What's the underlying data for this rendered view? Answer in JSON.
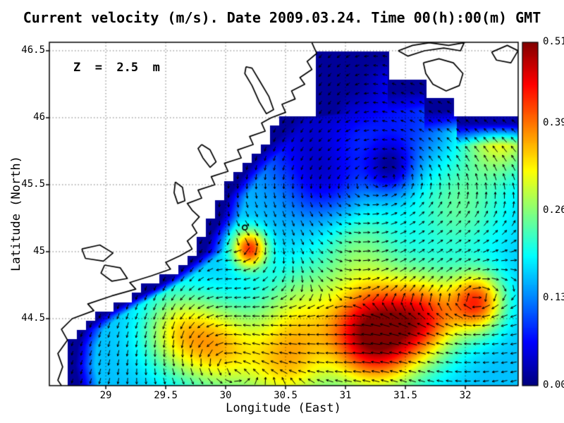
{
  "figure": {
    "title": "Current velocity (m/s). Date 2009.03.24. Time 00(h):00(m) GMT",
    "annotation": "Z  =  2.5  m",
    "background": "#ffffff"
  },
  "axes": {
    "x": {
      "label": "Longitude (East)",
      "range": [
        28.529,
        32.441
      ],
      "ticks": [
        29,
        29.5,
        30,
        30.5,
        31,
        31.5,
        32
      ],
      "tick_labels": [
        "29",
        "29.5",
        "30",
        "30.5",
        "31",
        "31.5",
        "32"
      ]
    },
    "y": {
      "label": "Latitude (North)",
      "range": [
        44.0,
        46.563
      ],
      "ticks": [
        46.5,
        46,
        45.5,
        45,
        44.5
      ],
      "tick_labels": [
        "46.5",
        "46",
        "45.5",
        "45",
        "44.5"
      ]
    },
    "grid": "dotted"
  },
  "colorbar": {
    "min": 0.0,
    "max": 0.51,
    "colormap": "jet",
    "ticks": [
      0.51,
      0.39,
      0.26,
      0.13,
      0.0
    ],
    "tick_labels": [
      "0.51",
      "0.39",
      "0.26",
      "0.13",
      "0.00"
    ]
  },
  "chart_data": {
    "type": "heatmap",
    "subtype": "current-velocity-vector-field",
    "units": "m/s",
    "depth_m": 2.5,
    "date": "2009.03.24",
    "time": "00(h):00(m) GMT",
    "value_range": [
      0.0,
      0.51
    ],
    "lon_range": [
      28.529,
      32.441
    ],
    "lat_range": [
      44.0,
      46.563
    ],
    "vector_grid_cells": [
      51,
      37
    ],
    "field": {
      "base": 0.16,
      "bumps": [
        [
          31.25,
          44.38,
          0.38,
          0.36
        ],
        [
          31.68,
          44.52,
          0.3,
          0.2
        ],
        [
          30.2,
          45.02,
          0.14,
          0.26
        ],
        [
          29.95,
          44.28,
          0.32,
          0.16
        ],
        [
          32.1,
          44.62,
          0.22,
          0.24
        ],
        [
          30.62,
          44.55,
          0.35,
          0.1
        ],
        [
          31.95,
          45.35,
          0.4,
          0.08
        ],
        [
          32.3,
          45.9,
          0.3,
          0.16
        ],
        [
          31.1,
          45.05,
          0.35,
          0.08
        ],
        [
          29.6,
          44.4,
          0.3,
          0.14
        ],
        [
          30.5,
          44.15,
          0.35,
          0.16
        ],
        [
          31.05,
          46.33,
          0.42,
          -0.14
        ],
        [
          30.85,
          45.52,
          0.32,
          -0.1
        ],
        [
          31.37,
          45.63,
          0.2,
          -0.13
        ],
        [
          30.55,
          45.95,
          0.4,
          -0.09
        ],
        [
          31.6,
          46.0,
          0.35,
          -0.06
        ]
      ]
    },
    "flow": {
      "base": [
        -0.07,
        -0.05
      ],
      "jet_stream": {
        "lat": 44.35,
        "width": 0.28,
        "u": -0.45,
        "lon_start": 29.6
      },
      "coastal": {
        "u": -0.08,
        "v": -0.3,
        "width": 0.3
      },
      "vortices": [
        [
          30.8,
          45.45,
          0.5,
          0.22
        ],
        [
          31.45,
          45.62,
          0.3,
          0.15
        ],
        [
          30.2,
          45.02,
          0.18,
          -0.3
        ],
        [
          29.95,
          44.32,
          0.3,
          0.22
        ],
        [
          32.05,
          44.62,
          0.25,
          -0.18
        ],
        [
          31.05,
          46.3,
          0.3,
          0.12
        ],
        [
          31.9,
          45.4,
          0.5,
          0.1
        ]
      ]
    },
    "west_boundary": [
      [
        46.563,
        30.79
      ],
      [
        46.03,
        30.79
      ],
      [
        45.99,
        30.47
      ],
      [
        45.86,
        30.36
      ],
      [
        45.71,
        30.2
      ],
      [
        45.56,
        30.07
      ],
      [
        45.41,
        29.95
      ],
      [
        45.26,
        29.9
      ],
      [
        45.11,
        29.8
      ],
      [
        45.0,
        29.76
      ],
      [
        44.9,
        29.62
      ],
      [
        44.8,
        29.47
      ],
      [
        44.72,
        29.32
      ],
      [
        44.62,
        29.1
      ],
      [
        44.52,
        28.9
      ],
      [
        44.42,
        28.76
      ],
      [
        44.3,
        28.7
      ],
      [
        44.15,
        28.68
      ],
      [
        44.0,
        28.71
      ]
    ],
    "top_boundary": [
      [
        0,
        46.52
      ],
      [
        31.35,
        46.28
      ],
      [
        31.66,
        46.12
      ],
      [
        31.93,
        46.02
      ]
    ],
    "coastlines": [
      [
        [
          30.72,
          46.56
        ],
        [
          30.76,
          46.48
        ],
        [
          30.68,
          46.42
        ],
        [
          30.72,
          46.36
        ],
        [
          30.62,
          46.3
        ],
        [
          30.66,
          46.25
        ],
        [
          30.55,
          46.2
        ],
        [
          30.58,
          46.14
        ],
        [
          30.47,
          46.1
        ],
        [
          30.5,
          46.04
        ],
        [
          30.38,
          46.0
        ],
        [
          30.3,
          45.96
        ],
        [
          30.33,
          45.9
        ],
        [
          30.2,
          45.86
        ],
        [
          30.23,
          45.8
        ],
        [
          30.1,
          45.76
        ],
        [
          30.13,
          45.7
        ],
        [
          29.99,
          45.66
        ],
        [
          30.02,
          45.6
        ],
        [
          29.88,
          45.56
        ],
        [
          29.91,
          45.5
        ],
        [
          29.77,
          45.46
        ],
        [
          29.8,
          45.4
        ],
        [
          29.68,
          45.36
        ],
        [
          29.72,
          45.31
        ],
        [
          29.78,
          45.26
        ],
        [
          29.72,
          45.2
        ],
        [
          29.76,
          45.14
        ],
        [
          29.68,
          45.08
        ],
        [
          29.72,
          45.02
        ],
        [
          29.62,
          44.97
        ],
        [
          29.5,
          44.92
        ],
        [
          29.54,
          44.87
        ],
        [
          29.38,
          44.82
        ],
        [
          29.2,
          44.77
        ],
        [
          29.25,
          44.72
        ],
        [
          29.05,
          44.67
        ],
        [
          28.85,
          44.61
        ],
        [
          28.9,
          44.56
        ],
        [
          28.72,
          44.5
        ],
        [
          28.63,
          44.42
        ],
        [
          28.68,
          44.34
        ],
        [
          28.6,
          44.24
        ],
        [
          28.64,
          44.14
        ],
        [
          28.6,
          44.04
        ],
        [
          28.63,
          44.0
        ]
      ],
      [
        [
          30.17,
          46.38
        ],
        [
          30.22,
          46.37
        ],
        [
          30.28,
          46.28
        ],
        [
          30.36,
          46.16
        ],
        [
          30.4,
          46.06
        ],
        [
          30.34,
          46.03
        ],
        [
          30.28,
          46.12
        ],
        [
          30.22,
          46.24
        ],
        [
          30.16,
          46.33
        ],
        [
          30.17,
          46.38
        ]
      ],
      [
        [
          29.8,
          45.8
        ],
        [
          29.87,
          45.76
        ],
        [
          29.92,
          45.67
        ],
        [
          29.87,
          45.63
        ],
        [
          29.81,
          45.7
        ],
        [
          29.77,
          45.77
        ],
        [
          29.8,
          45.8
        ]
      ],
      [
        [
          29.58,
          45.52
        ],
        [
          29.64,
          45.48
        ],
        [
          29.66,
          45.38
        ],
        [
          29.6,
          45.36
        ],
        [
          29.57,
          45.44
        ],
        [
          29.58,
          45.52
        ]
      ],
      [
        [
          28.8,
          45.02
        ],
        [
          28.95,
          45.05
        ],
        [
          29.06,
          44.99
        ],
        [
          28.98,
          44.93
        ],
        [
          28.83,
          44.95
        ],
        [
          28.8,
          45.02
        ]
      ],
      [
        [
          28.99,
          44.9
        ],
        [
          29.12,
          44.88
        ],
        [
          29.18,
          44.8
        ],
        [
          29.05,
          44.78
        ],
        [
          28.96,
          44.84
        ],
        [
          28.99,
          44.9
        ]
      ],
      [
        [
          31.44,
          46.5
        ],
        [
          31.56,
          46.54
        ],
        [
          31.7,
          46.56
        ],
        [
          31.86,
          46.54
        ],
        [
          31.99,
          46.56
        ],
        [
          31.96,
          46.5
        ],
        [
          31.82,
          46.52
        ],
        [
          31.66,
          46.5
        ],
        [
          31.52,
          46.46
        ],
        [
          31.44,
          46.5
        ]
      ],
      [
        [
          31.65,
          46.41
        ],
        [
          31.78,
          46.44
        ],
        [
          31.9,
          46.41
        ],
        [
          31.98,
          46.33
        ],
        [
          31.95,
          46.24
        ],
        [
          31.84,
          46.2
        ],
        [
          31.73,
          46.25
        ],
        [
          31.67,
          46.33
        ],
        [
          31.65,
          46.41
        ]
      ],
      [
        [
          32.22,
          46.49
        ],
        [
          32.35,
          46.54
        ],
        [
          32.44,
          46.5
        ],
        [
          32.38,
          46.41
        ],
        [
          32.26,
          46.43
        ],
        [
          32.22,
          46.49
        ]
      ]
    ],
    "islands": [
      [
        30.16,
        45.18,
        0.02
      ]
    ]
  }
}
